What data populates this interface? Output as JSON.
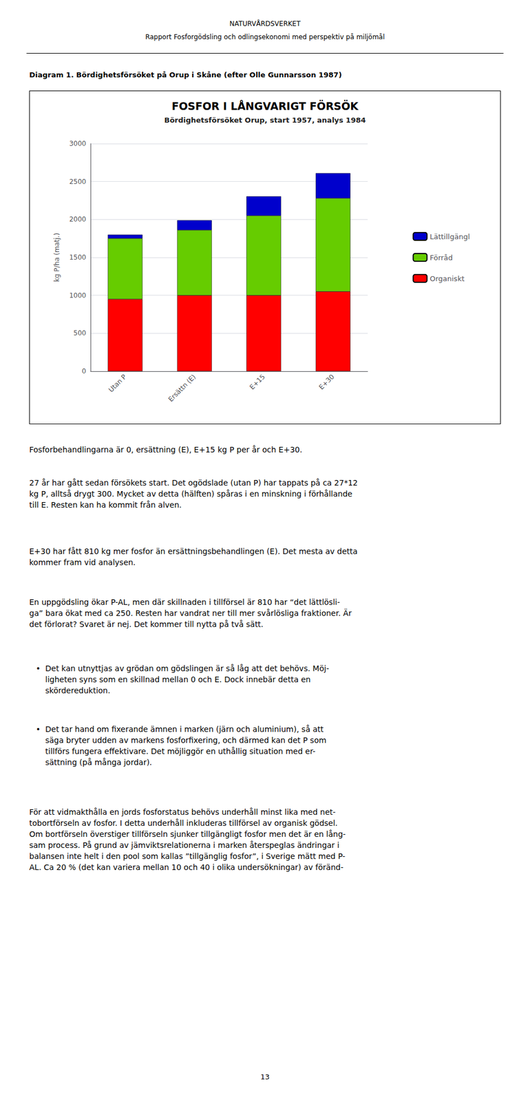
{
  "header": [
    "NATURVÅRDSVERKET",
    "Rapport Fosforgödsling och odlingsekonomi med perspektiv på miljömål"
  ],
  "caption": "Diagram 1. Bördighetsförsöket på Orup i Skåne (efter Olle Gunnarsson 1987)",
  "chart_data": {
    "type": "bar",
    "title": "FOSFOR I LÅNGVARIGT FÖRSÖK",
    "subtitle": "Bördighetsförsöket Orup, start 1957, analys 1984",
    "ylabel": "kg P/ha (matj.)",
    "categories": [
      "Utan P",
      "Ersättn (E)",
      "E+15",
      "E+30"
    ],
    "series": [
      {
        "name": "Organiskt",
        "color": "#ff0000",
        "values": [
          950,
          1000,
          1000,
          1050
        ]
      },
      {
        "name": "Förråd",
        "color": "#66cc00",
        "values": [
          800,
          860,
          1050,
          1230
        ]
      },
      {
        "name": "Lättillgängl",
        "color": "#0000cc",
        "values": [
          50,
          130,
          255,
          330
        ]
      }
    ],
    "stacked": true,
    "ylim": [
      0,
      3000
    ],
    "yticks": [
      0,
      500,
      1000,
      1500,
      2000,
      2500,
      3000
    ],
    "grid": true,
    "legend": "right"
  },
  "body": [
    "Fosforbehandlingarna är 0, ersättning (E), E+15 kg P per år och E+30.",
    "27 år har gått sedan försökets start. Det ogödslade (utan P) har tappats på ca 27*12\nkg P, alltså drygt 300. Mycket av detta (hälften) spåras i en minskning i förhållande\ntill E. Resten kan ha kommit från alven.",
    "E+30 har fått 810 kg mer fosfor än ersättningsbehandlingen (E). Det mesta av detta\nkommer fram vid analysen.",
    "En uppgödsling ökar P-AL, men där skillnaden i tillförsel är 810 har “det lättlösli-\nga” bara ökat med ca 250. Resten har vandrat ner till mer svårlösliga fraktioner. Är\ndet förlorat? Svaret är nej. Det kommer till nytta på två sätt.",
    {
      "bullet": "•",
      "text": "Det kan utnyttjas av grödan om gödslingen är så låg att det behövs. Möj-\nligheten syns som en skillnad mellan 0 och E. Dock innebär detta en\nskördereduktion."
    },
    {
      "bullet": "•",
      "text": "Det tar hand om fixerande ämnen i marken (järn och aluminium), så att\nsäga bryter udden av markens fosforfixering, och därmed kan det P som\ntillförs fungera effektivare. Det möjliggör en uthållig situation med er-\nsättning (på många jordar)."
    },
    "För att vidmakthålla en jords fosforstatus behövs underhåll minst lika med net-\ntobortförseln av fosfor. I detta underhåll inkluderas tillförsel av organisk gödsel.\nOm bortförseln överstiger tillförseln sjunker tillgängligt fosfor men det är en lång-\nsam process. På grund av jämviktsrelationerna i marken återspeglas ändringar i\nbalansen inte helt i den pool som kallas ”tillgänglig fosfor”, i Sverige mätt med P-\nAL. Ca 20 % (det kan variera mellan 10 och 40 i olika undersökningar) av föränd-"
  ],
  "page_number": "13"
}
